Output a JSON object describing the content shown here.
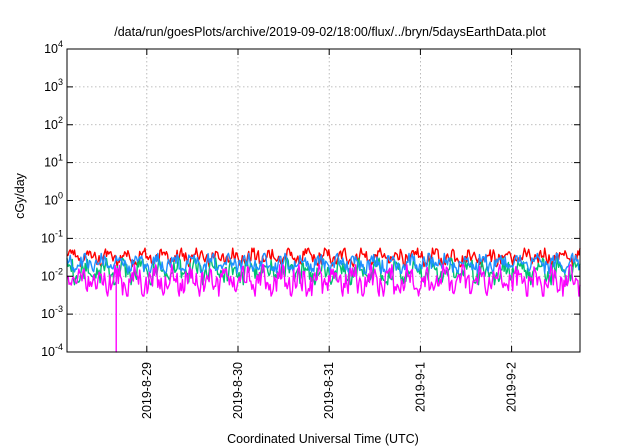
{
  "chart_data": {
    "type": "line",
    "title": "/data/run/goesPlots/archive/2019-09-02/18:00/flux/../bryn/5daysEarthData.plot",
    "xlabel": "Coordinated Universal Time (UTC)",
    "ylabel": "cGy/day",
    "yscale": "log",
    "ylim": [
      0.0001,
      10000
    ],
    "xlim": [
      "2019-08-28T03:00",
      "2019-09-02T18:00"
    ],
    "grid": true,
    "x_ticks": [
      {
        "label": "2019-8-29",
        "date": "2019-08-29T00:00"
      },
      {
        "label": "2019-8-30",
        "date": "2019-08-30T00:00"
      },
      {
        "label": "2019-8-31",
        "date": "2019-08-31T00:00"
      },
      {
        "label": "2019-9-1",
        "date": "2019-09-01T00:00"
      },
      {
        "label": "2019-9-2",
        "date": "2019-09-02T00:00"
      }
    ],
    "y_ticks": [
      {
        "base": "10",
        "exp": "-4",
        "value": 0.0001
      },
      {
        "base": "10",
        "exp": "-3",
        "value": 0.001
      },
      {
        "base": "10",
        "exp": "-2",
        "value": 0.01
      },
      {
        "base": "10",
        "exp": "-1",
        "value": 0.1
      },
      {
        "base": "10",
        "exp": "0",
        "value": 1
      },
      {
        "base": "10",
        "exp": "1",
        "value": 10
      },
      {
        "base": "10",
        "exp": "2",
        "value": 100
      },
      {
        "base": "10",
        "exp": "3",
        "value": 1000
      },
      {
        "base": "10",
        "exp": "4",
        "value": 10000
      }
    ],
    "series": [
      {
        "color": "#ff0000",
        "style": "noisy band",
        "typical_range": [
          0.018,
          0.055
        ]
      },
      {
        "color": "#00c070",
        "style": "noisy band",
        "typical_range": [
          0.006,
          0.03
        ]
      },
      {
        "color": "#1e90ff",
        "style": "noisy band",
        "typical_range": [
          0.012,
          0.04
        ]
      },
      {
        "color": "#ff00ff",
        "style": "noisy band",
        "typical_range": [
          0.003,
          0.02
        ],
        "dip": {
          "date": "2019-08-28T16:00",
          "value": 0.0001
        }
      }
    ]
  }
}
